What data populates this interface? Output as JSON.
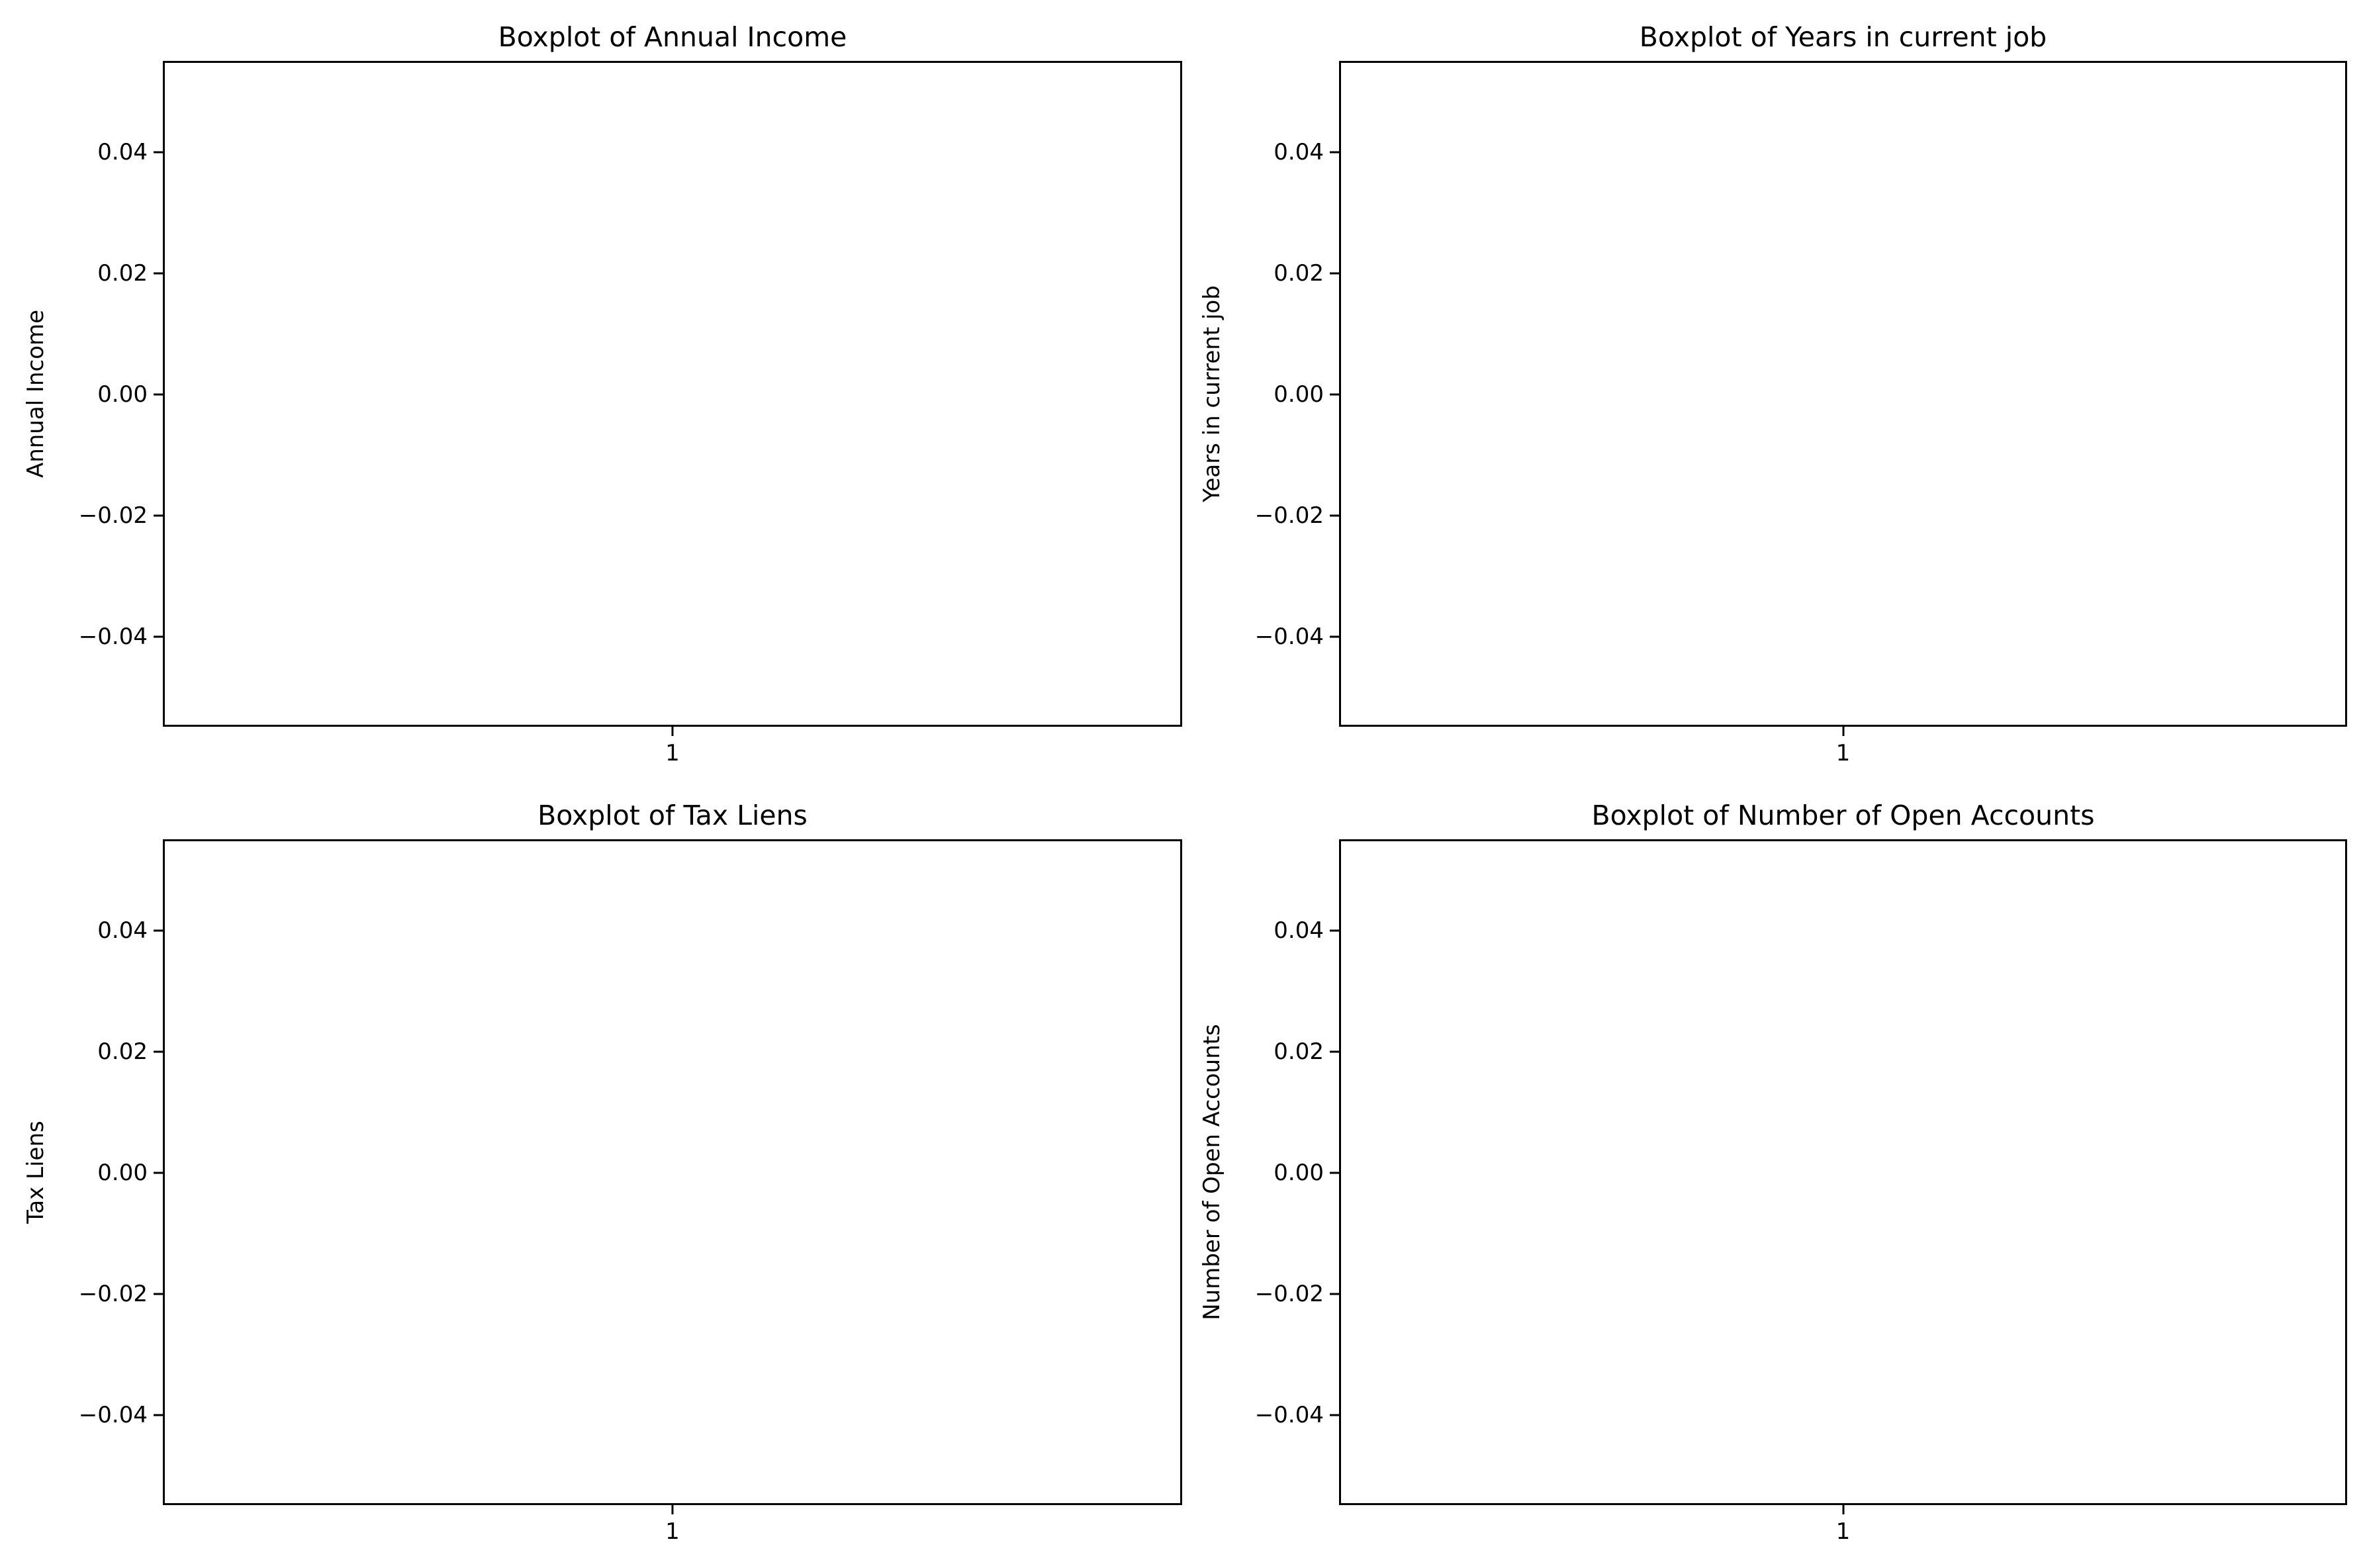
{
  "figure": {
    "background_color": "#ffffff",
    "axis_color": "#000000",
    "text_color": "#000000",
    "grid": "off",
    "layout": "2x2 subplots"
  },
  "chart_data": [
    {
      "type": "boxplot",
      "title": "Boxplot of Annual Income",
      "xlabel": "",
      "ylabel": "Annual Income",
      "x_tick_labels": [
        "1"
      ],
      "y_tick_labels": [
        "0.04",
        "0.02",
        "0.00",
        "−0.02",
        "−0.04"
      ],
      "ylim": [
        -0.055,
        0.055
      ],
      "series": []
    },
    {
      "type": "boxplot",
      "title": "Boxplot of Years in current job",
      "xlabel": "",
      "ylabel": "Years in current job",
      "x_tick_labels": [
        "1"
      ],
      "y_tick_labels": [
        "0.04",
        "0.02",
        "0.00",
        "−0.02",
        "−0.04"
      ],
      "ylim": [
        -0.055,
        0.055
      ],
      "series": []
    },
    {
      "type": "boxplot",
      "title": "Boxplot of Tax Liens",
      "xlabel": "",
      "ylabel": "Tax Liens",
      "x_tick_labels": [
        "1"
      ],
      "y_tick_labels": [
        "0.04",
        "0.02",
        "0.00",
        "−0.02",
        "−0.04"
      ],
      "ylim": [
        -0.055,
        0.055
      ],
      "series": []
    },
    {
      "type": "boxplot",
      "title": "Boxplot of Number of Open Accounts",
      "xlabel": "",
      "ylabel": "Number of Open Accounts",
      "x_tick_labels": [
        "1"
      ],
      "y_tick_labels": [
        "0.04",
        "0.02",
        "0.00",
        "−0.02",
        "−0.04"
      ],
      "ylim": [
        -0.055,
        0.055
      ],
      "series": []
    }
  ]
}
